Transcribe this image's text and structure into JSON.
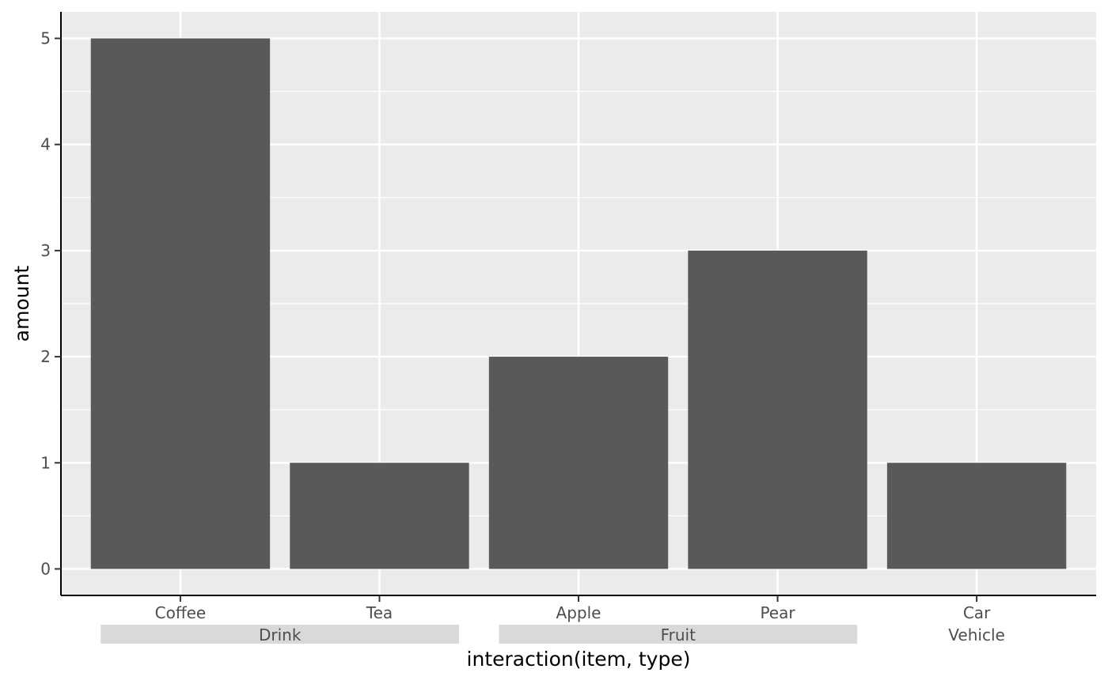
{
  "chart_data": {
    "type": "bar",
    "categories": [
      "Coffee",
      "Tea",
      "Apple",
      "Pear",
      "Car"
    ],
    "values": [
      5,
      1,
      2,
      3,
      1
    ],
    "groups": [
      {
        "label": "Drink",
        "categories": [
          "Coffee",
          "Tea"
        ],
        "shaded": true
      },
      {
        "label": "Fruit",
        "categories": [
          "Apple",
          "Pear"
        ],
        "shaded": true
      },
      {
        "label": "Vehicle",
        "categories": [
          "Car"
        ],
        "shaded": false
      }
    ],
    "xlabel": "interaction(item, type)",
    "ylabel": "amount",
    "ylim": [
      -0.25,
      5.25
    ],
    "yticks": [
      0,
      1,
      2,
      3,
      4,
      5
    ],
    "grid": true,
    "colors": {
      "panel_background": "#ebebeb",
      "bar_fill": "#595959",
      "grid_line": "#ffffff",
      "group_strip": "#d9d9d9",
      "axis_line": "#000000",
      "tick_text": "#4d4d4d"
    }
  }
}
